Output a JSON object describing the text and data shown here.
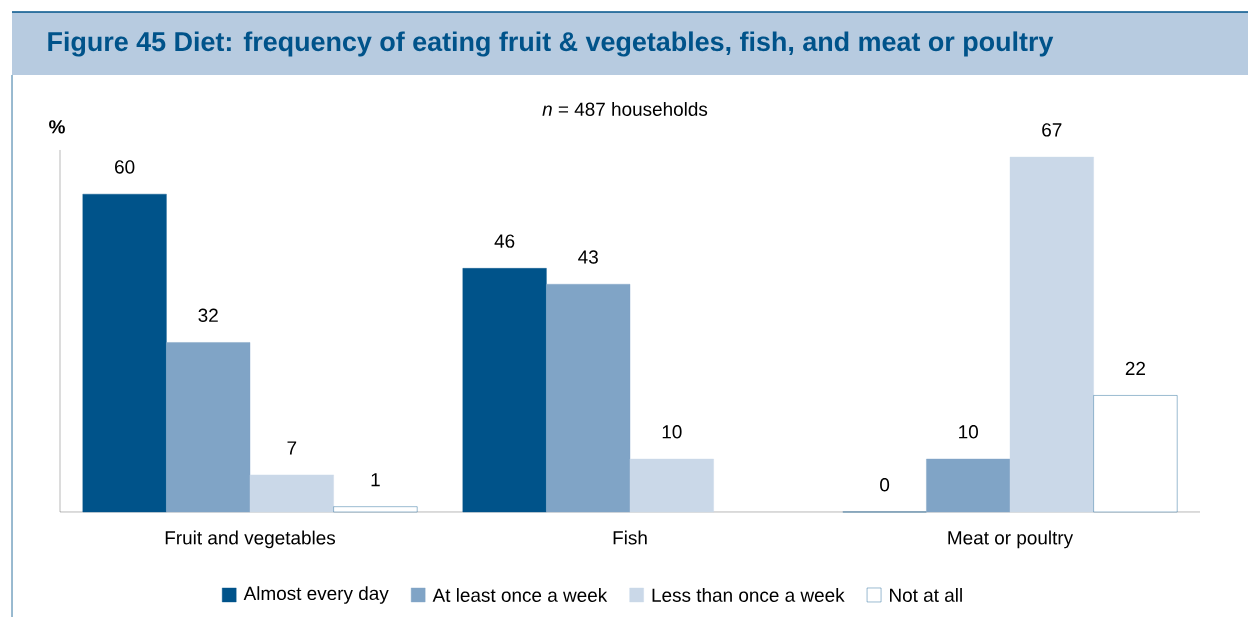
{
  "chart_data": {
    "type": "bar",
    "title": "Figure 45 Diet: frequency of eating fruit & vegetables, fish, and meat or poultry",
    "subtitle": "*n* = 487 households",
    "ylabel": "%",
    "categories": [
      "Fruit and vegetables",
      "Fish",
      "Meat or poultry"
    ],
    "series": [
      {
        "name": "Almost every day",
        "color": "#00538a",
        "values": [
          60,
          46,
          0
        ]
      },
      {
        "name": "At least once a week",
        "color": "#80a4c6",
        "values": [
          32,
          43,
          10
        ]
      },
      {
        "name": "Less than once a week",
        "color": "#cad8e8",
        "values": [
          7,
          10,
          67
        ]
      },
      {
        "name": "Not at all",
        "color": "#ffffff",
        "values": [
          1,
          null,
          22
        ]
      }
    ],
    "data_labels": true,
    "legend": "bottom"
  }
}
